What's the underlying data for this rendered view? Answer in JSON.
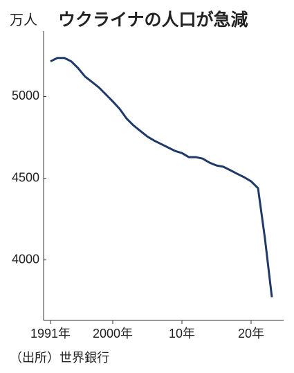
{
  "chart_data": {
    "type": "line",
    "title": "ウクライナの人口が急減",
    "y_label": "万人",
    "source": "（出所）世界銀行",
    "x": [
      1991,
      1992,
      1993,
      1994,
      1995,
      1996,
      1997,
      1998,
      1999,
      2000,
      2001,
      2002,
      2003,
      2004,
      2005,
      2006,
      2007,
      2008,
      2009,
      2010,
      2011,
      2012,
      2013,
      2014,
      2015,
      2016,
      2017,
      2018,
      2019,
      2020,
      2021,
      2022,
      2023
    ],
    "series": [
      {
        "name": "人口",
        "color": "#1f3a68",
        "values": [
          5215,
          5236,
          5236,
          5215,
          5173,
          5122,
          5089,
          5055,
          5013,
          4970,
          4924,
          4865,
          4823,
          4789,
          4755,
          4730,
          4709,
          4688,
          4667,
          4654,
          4629,
          4629,
          4620,
          4595,
          4578,
          4570,
          4549,
          4527,
          4506,
          4481,
          4439,
          4131,
          3772
        ]
      }
    ],
    "xlim": [
      1990,
      2024.7
    ],
    "xticks": [
      {
        "value": 1991,
        "label": "1991年"
      },
      {
        "value": 2000,
        "label": "2000年"
      },
      {
        "value": 2010,
        "label": "10年"
      },
      {
        "value": 2020,
        "label": "20年"
      }
    ],
    "ylim": [
      3630,
      5400
    ],
    "yticks": [
      4000,
      4500,
      5000
    ],
    "grid": false
  }
}
